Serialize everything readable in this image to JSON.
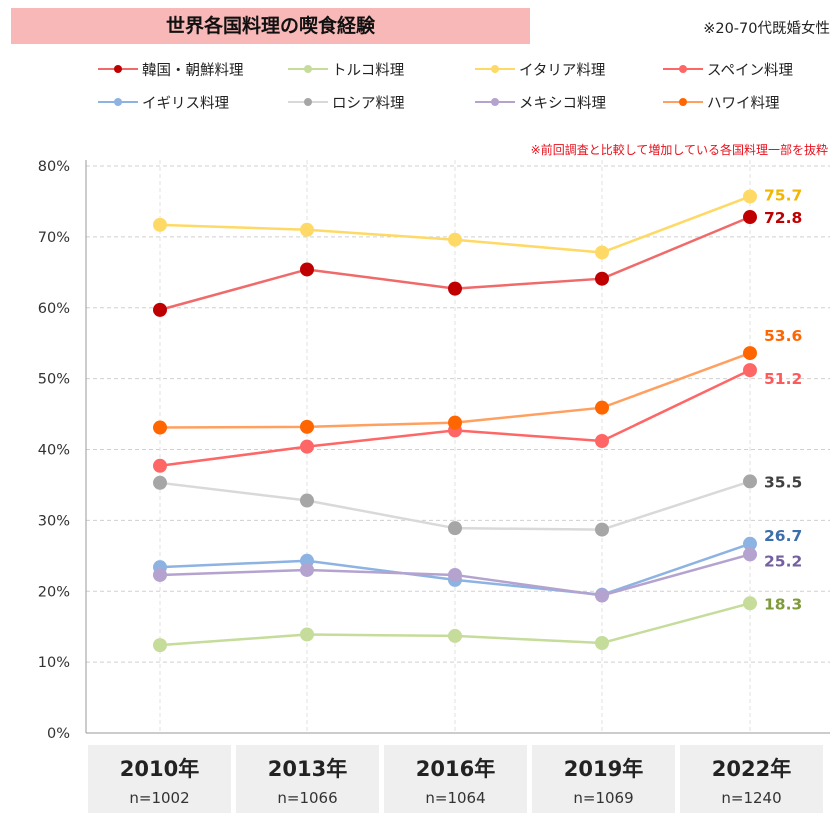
{
  "title": "世界各国料理の喫食経験",
  "note": "※20-70代既婚女性",
  "subnote": "※前回調査と比較して増加している各国料理一部を抜粋",
  "chart_data": {
    "type": "line",
    "x": [
      "2010年",
      "2013年",
      "2016年",
      "2019年",
      "2022年"
    ],
    "n_labels": [
      "n=1002",
      "n=1066",
      "n=1064",
      "n=1069",
      "n=1240"
    ],
    "ylim": [
      0,
      80
    ],
    "yticks": [
      "0%",
      "10%",
      "20%",
      "30%",
      "40%",
      "50%",
      "60%",
      "70%",
      "80%"
    ],
    "grid": true,
    "legend_position": "top",
    "series": [
      {
        "name": "韓国・朝鮮料理",
        "color": "#c00000",
        "line_color": "#f06a6a",
        "values": [
          59.7,
          65.4,
          62.7,
          64.1,
          72.8
        ],
        "end_label": "72.8",
        "label_color": "#c00000"
      },
      {
        "name": "トルコ料理",
        "color": "#c5dc9a",
        "line_color": "#c5dc9a",
        "values": [
          12.4,
          13.9,
          13.7,
          12.7,
          18.3
        ],
        "end_label": "18.3",
        "label_color": "#7f9a3a"
      },
      {
        "name": "イタリア料理",
        "color": "#ffd966",
        "line_color": "#ffd966",
        "values": [
          71.7,
          71.0,
          69.6,
          67.8,
          75.7
        ],
        "end_label": "75.7",
        "label_color": "#f2b500"
      },
      {
        "name": "スペイン料理",
        "color": "#ff6666",
        "line_color": "#ff6666",
        "values": [
          37.7,
          40.4,
          42.7,
          41.2,
          51.2
        ],
        "end_label": "51.2",
        "label_color": "#ff5a5a"
      },
      {
        "name": "イギリス料理",
        "color": "#8db3e2",
        "line_color": "#8db3e2",
        "values": [
          23.4,
          24.3,
          21.6,
          19.5,
          26.7
        ],
        "end_label": "26.7",
        "label_color": "#3c6eaa"
      },
      {
        "name": "ロシア料理",
        "color": "#a6a6a6",
        "line_color": "#d9d9d9",
        "values": [
          35.3,
          32.8,
          28.9,
          28.7,
          35.5
        ],
        "end_label": "35.5",
        "label_color": "#404040"
      },
      {
        "name": "メキシコ料理",
        "color": "#b4a2cf",
        "line_color": "#b4a2cf",
        "values": [
          22.3,
          23.0,
          22.3,
          19.4,
          25.2
        ],
        "end_label": "25.2",
        "label_color": "#7460a0"
      },
      {
        "name": "ハワイ料理",
        "color": "#ff6600",
        "line_color": "#ffa060",
        "values": [
          43.1,
          43.2,
          43.8,
          45.9,
          53.6
        ],
        "end_label": "53.6",
        "label_color": "#ff6600"
      }
    ]
  }
}
